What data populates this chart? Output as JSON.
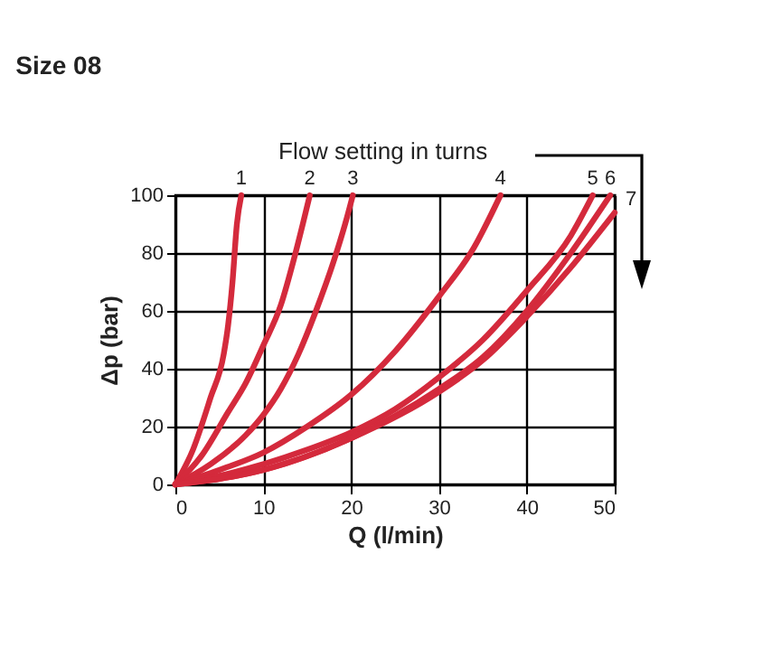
{
  "chart_data": {
    "type": "line",
    "title": "Size 08",
    "xlabel": "Q (l/min)",
    "ylabel": "Δp (bar)",
    "annotations": [
      "Flow setting in turns"
    ],
    "xlim": [
      0,
      50
    ],
    "ylim": [
      0,
      100
    ],
    "xticks": [
      0,
      10,
      20,
      30,
      40,
      50
    ],
    "yticks": [
      0,
      20,
      40,
      60,
      80,
      100
    ],
    "grid": true,
    "legend": false,
    "marker": "none",
    "line_style": "solid",
    "series": [
      {
        "name": "1",
        "color": "#d42a3c",
        "x": [
          0,
          2,
          4,
          5.5,
          6,
          6.5,
          7,
          7.5
        ],
        "values": [
          0,
          12,
          30,
          45,
          55,
          70,
          90,
          100
        ]
      },
      {
        "name": "2",
        "color": "#d42a3c",
        "x": [
          0,
          3,
          6,
          8,
          10,
          12,
          13.5,
          14.5,
          15.3
        ],
        "values": [
          0,
          10,
          25,
          35,
          48,
          62,
          78,
          90,
          100
        ]
      },
      {
        "name": "3",
        "color": "#d42a3c",
        "x": [
          0,
          4,
          8,
          10,
          12,
          14,
          16,
          18,
          19.5,
          20.2
        ],
        "values": [
          0,
          7,
          17,
          24,
          33,
          45,
          60,
          77,
          92,
          100
        ]
      },
      {
        "name": "4",
        "color": "#d42a3c",
        "x": [
          0,
          5,
          10,
          15,
          20,
          25,
          30,
          34,
          37
        ],
        "values": [
          0,
          5,
          11,
          20,
          31,
          46,
          65,
          82,
          100
        ]
      },
      {
        "name": "5",
        "color": "#d42a3c",
        "x": [
          0,
          5,
          10,
          15,
          20,
          25,
          30,
          35,
          40,
          45,
          47.5
        ],
        "values": [
          0,
          3,
          7,
          12,
          18,
          26,
          37,
          50,
          67,
          86,
          100
        ]
      },
      {
        "name": "6",
        "color": "#d42a3c",
        "x": [
          0,
          10,
          20,
          30,
          35,
          40,
          45,
          49.5
        ],
        "values": [
          0,
          5,
          16,
          33,
          44,
          60,
          80,
          100
        ]
      },
      {
        "name": "7",
        "color": "#d42a3c",
        "x": [
          0,
          10,
          20,
          30,
          35,
          40,
          45,
          50
        ],
        "values": [
          0,
          5,
          16,
          32,
          43,
          58,
          75,
          94
        ]
      }
    ]
  }
}
